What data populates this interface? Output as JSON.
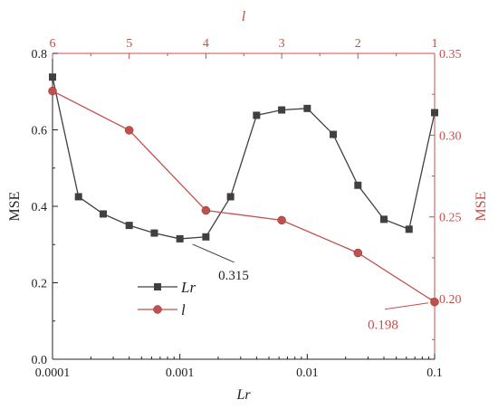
{
  "chart_data": {
    "type": "line",
    "axes": {
      "bottom": {
        "label": "Lr",
        "scale": "log",
        "range": [
          0.0001,
          0.1
        ],
        "ticks": [
          0.0001,
          0.001,
          0.01,
          0.1
        ],
        "tick_labels": [
          "0.0001",
          "0.001",
          "0.01",
          "0.1"
        ]
      },
      "left": {
        "label": "MSE",
        "range": [
          0,
          0.8
        ],
        "ticks": [
          0,
          0.2,
          0.4,
          0.6,
          0.8
        ],
        "tick_labels": [
          "0.0",
          "0.2",
          "0.4",
          "0.6",
          "0.8"
        ]
      },
      "top": {
        "label": "l",
        "ticks": [
          6,
          5,
          4,
          3,
          2,
          1
        ],
        "tick_labels": [
          "6",
          "5",
          "4",
          "3",
          "2",
          "1"
        ],
        "tick_positions_lr": [
          0.0001,
          0.0004,
          0.0016,
          0.0063,
          0.025,
          0.1
        ]
      },
      "right": {
        "label": "MSE",
        "range": [
          0.163,
          0.35
        ],
        "ticks": [
          0.2,
          0.25,
          0.3,
          0.35
        ],
        "tick_labels": [
          "0.20",
          "0.25",
          "0.30",
          "0.35"
        ]
      }
    },
    "series": [
      {
        "name": "Lr",
        "axis": "left",
        "color": "#404040",
        "marker": "square",
        "x": [
          0.0001,
          0.00016,
          0.00025,
          0.0004,
          0.00063,
          0.001,
          0.0016,
          0.0025,
          0.004,
          0.0063,
          0.01,
          0.016,
          0.025,
          0.04,
          0.063,
          0.1
        ],
        "y": [
          0.738,
          0.425,
          0.38,
          0.35,
          0.33,
          0.315,
          0.32,
          0.425,
          0.638,
          0.652,
          0.656,
          0.588,
          0.455,
          0.366,
          0.34,
          0.645
        ]
      },
      {
        "name": "l",
        "axis": "right",
        "color": "#c0504d",
        "marker": "circle",
        "x": [
          0.0001,
          0.0004,
          0.0016,
          0.0063,
          0.025,
          0.1
        ],
        "y": [
          0.327,
          0.303,
          0.254,
          0.248,
          0.228,
          0.198
        ]
      }
    ],
    "annotations": [
      {
        "text": "0.315",
        "series": "Lr",
        "x": 0.001,
        "y": 0.315
      },
      {
        "text": "0.198",
        "series": "l",
        "x": 0.1,
        "y": 0.198
      }
    ],
    "legend": {
      "placement": "center-left",
      "entries": [
        "Lr",
        "l"
      ]
    },
    "grid": false
  },
  "colors": {
    "lr": "#404040",
    "l": "#c0504d",
    "axis_black": "#222222",
    "axis_red": "#c0504d"
  }
}
